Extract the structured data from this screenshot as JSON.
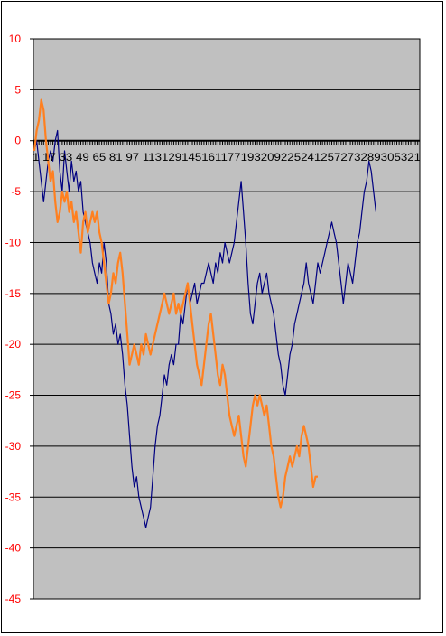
{
  "chart_data": {
    "type": "line",
    "title": "",
    "xlabel": "",
    "ylabel": "",
    "ylim": [
      -45,
      10
    ],
    "yticks": [
      10,
      5,
      0,
      -5,
      -10,
      -15,
      -20,
      -25,
      -30,
      -35,
      -40,
      -45
    ],
    "x_tick_labels": [
      "1",
      "17",
      "33",
      "49",
      "65",
      "81",
      "97",
      "113",
      "129",
      "145",
      "161",
      "177",
      "193",
      "209",
      "225",
      "241",
      "257",
      "273",
      "289",
      "305",
      "321"
    ],
    "x_tick_text": "1 17 33 49 65 81 97 113129145161177193209225241257273289305321",
    "x_count": 332,
    "grid": true,
    "legend": "none",
    "colors": {
      "plot_bg": "#c0c0c0",
      "gridline": "#000000",
      "ytick_text": "#ff0000",
      "series_blue": "#000080",
      "series_orange": "#ff8020"
    },
    "series": [
      {
        "color": "#000080",
        "points": [
          [
            1,
            -1
          ],
          [
            3,
            0
          ],
          [
            5,
            -2
          ],
          [
            7,
            -4
          ],
          [
            9,
            -6
          ],
          [
            11,
            -4
          ],
          [
            13,
            -2
          ],
          [
            15,
            -1
          ],
          [
            17,
            -2
          ],
          [
            19,
            0
          ],
          [
            21,
            1
          ],
          [
            23,
            -3
          ],
          [
            25,
            -5
          ],
          [
            27,
            -1
          ],
          [
            29,
            -3
          ],
          [
            31,
            -5
          ],
          [
            33,
            -2
          ],
          [
            35,
            -4
          ],
          [
            37,
            -3
          ],
          [
            39,
            -5
          ],
          [
            41,
            -4
          ],
          [
            43,
            -7
          ],
          [
            45,
            -8
          ],
          [
            47,
            -9
          ],
          [
            49,
            -10
          ],
          [
            51,
            -12
          ],
          [
            53,
            -13
          ],
          [
            55,
            -14
          ],
          [
            57,
            -12
          ],
          [
            59,
            -13
          ],
          [
            61,
            -10
          ],
          [
            63,
            -12
          ],
          [
            65,
            -16
          ],
          [
            67,
            -17
          ],
          [
            69,
            -19
          ],
          [
            71,
            -18
          ],
          [
            73,
            -20
          ],
          [
            75,
            -19
          ],
          [
            77,
            -21
          ],
          [
            79,
            -24
          ],
          [
            81,
            -26
          ],
          [
            83,
            -29
          ],
          [
            85,
            -32
          ],
          [
            87,
            -34
          ],
          [
            89,
            -33
          ],
          [
            91,
            -35
          ],
          [
            93,
            -36
          ],
          [
            95,
            -37
          ],
          [
            97,
            -38
          ],
          [
            99,
            -37
          ],
          [
            101,
            -36
          ],
          [
            103,
            -33
          ],
          [
            105,
            -30
          ],
          [
            107,
            -28
          ],
          [
            109,
            -27
          ],
          [
            111,
            -25
          ],
          [
            113,
            -23
          ],
          [
            115,
            -24
          ],
          [
            117,
            -22
          ],
          [
            119,
            -21
          ],
          [
            121,
            -22
          ],
          [
            123,
            -20
          ],
          [
            125,
            -20
          ],
          [
            127,
            -17
          ],
          [
            129,
            -18
          ],
          [
            131,
            -16
          ],
          [
            133,
            -14
          ],
          [
            135,
            -16
          ],
          [
            137,
            -15
          ],
          [
            139,
            -14
          ],
          [
            141,
            -16
          ],
          [
            143,
            -15
          ],
          [
            145,
            -14
          ],
          [
            147,
            -14
          ],
          [
            149,
            -13
          ],
          [
            151,
            -12
          ],
          [
            153,
            -13
          ],
          [
            155,
            -14
          ],
          [
            157,
            -12
          ],
          [
            159,
            -13
          ],
          [
            161,
            -11
          ],
          [
            163,
            -12
          ],
          [
            165,
            -10
          ],
          [
            167,
            -11
          ],
          [
            169,
            -12
          ],
          [
            171,
            -11
          ],
          [
            173,
            -10
          ],
          [
            175,
            -8
          ],
          [
            177,
            -6
          ],
          [
            179,
            -4
          ],
          [
            181,
            -7
          ],
          [
            183,
            -10
          ],
          [
            185,
            -14
          ],
          [
            187,
            -17
          ],
          [
            189,
            -18
          ],
          [
            191,
            -16
          ],
          [
            193,
            -14
          ],
          [
            195,
            -13
          ],
          [
            197,
            -15
          ],
          [
            199,
            -14
          ],
          [
            201,
            -13
          ],
          [
            203,
            -15
          ],
          [
            205,
            -16
          ],
          [
            207,
            -17
          ],
          [
            209,
            -19
          ],
          [
            211,
            -21
          ],
          [
            213,
            -22
          ],
          [
            215,
            -24
          ],
          [
            217,
            -25
          ],
          [
            219,
            -23
          ],
          [
            221,
            -21
          ],
          [
            223,
            -20
          ],
          [
            225,
            -18
          ],
          [
            227,
            -17
          ],
          [
            229,
            -16
          ],
          [
            231,
            -15
          ],
          [
            233,
            -14
          ],
          [
            235,
            -12
          ],
          [
            237,
            -14
          ],
          [
            239,
            -15
          ],
          [
            241,
            -16
          ],
          [
            243,
            -14
          ],
          [
            245,
            -12
          ],
          [
            247,
            -13
          ],
          [
            249,
            -12
          ],
          [
            251,
            -11
          ],
          [
            253,
            -10
          ],
          [
            255,
            -9
          ],
          [
            257,
            -8
          ],
          [
            259,
            -9
          ],
          [
            261,
            -10
          ],
          [
            263,
            -12
          ],
          [
            265,
            -14
          ],
          [
            267,
            -16
          ],
          [
            269,
            -14
          ],
          [
            271,
            -12
          ],
          [
            273,
            -13
          ],
          [
            275,
            -14
          ],
          [
            277,
            -12
          ],
          [
            279,
            -10
          ],
          [
            281,
            -9
          ],
          [
            283,
            -7
          ],
          [
            285,
            -5
          ],
          [
            287,
            -4
          ],
          [
            289,
            -2
          ],
          [
            291,
            -3
          ],
          [
            293,
            -5
          ],
          [
            295,
            -7
          ]
        ]
      },
      {
        "color": "#ff8020",
        "points": [
          [
            1,
            -1
          ],
          [
            3,
            1
          ],
          [
            5,
            2
          ],
          [
            7,
            4
          ],
          [
            9,
            3
          ],
          [
            11,
            0
          ],
          [
            13,
            -2
          ],
          [
            15,
            -4
          ],
          [
            17,
            -3
          ],
          [
            19,
            -6
          ],
          [
            21,
            -8
          ],
          [
            23,
            -7
          ],
          [
            25,
            -5
          ],
          [
            27,
            -6
          ],
          [
            29,
            -5
          ],
          [
            31,
            -7
          ],
          [
            33,
            -6
          ],
          [
            35,
            -8
          ],
          [
            37,
            -7
          ],
          [
            39,
            -9
          ],
          [
            41,
            -11
          ],
          [
            43,
            -8
          ],
          [
            45,
            -7
          ],
          [
            47,
            -9
          ],
          [
            49,
            -8
          ],
          [
            51,
            -7
          ],
          [
            53,
            -8
          ],
          [
            55,
            -7
          ],
          [
            57,
            -9
          ],
          [
            59,
            -10
          ],
          [
            61,
            -12
          ],
          [
            63,
            -14
          ],
          [
            65,
            -16
          ],
          [
            67,
            -15
          ],
          [
            69,
            -13
          ],
          [
            71,
            -14
          ],
          [
            73,
            -12
          ],
          [
            75,
            -11
          ],
          [
            77,
            -13
          ],
          [
            79,
            -16
          ],
          [
            81,
            -19
          ],
          [
            83,
            -22
          ],
          [
            85,
            -21
          ],
          [
            87,
            -20
          ],
          [
            89,
            -21
          ],
          [
            91,
            -22
          ],
          [
            93,
            -20
          ],
          [
            95,
            -21
          ],
          [
            97,
            -19
          ],
          [
            99,
            -20
          ],
          [
            101,
            -21
          ],
          [
            103,
            -20
          ],
          [
            105,
            -19
          ],
          [
            107,
            -18
          ],
          [
            109,
            -17
          ],
          [
            111,
            -16
          ],
          [
            113,
            -15
          ],
          [
            115,
            -16
          ],
          [
            117,
            -17
          ],
          [
            119,
            -16
          ],
          [
            121,
            -15
          ],
          [
            123,
            -17
          ],
          [
            125,
            -16
          ],
          [
            127,
            -17
          ],
          [
            129,
            -16
          ],
          [
            131,
            -15
          ],
          [
            133,
            -14
          ],
          [
            135,
            -16
          ],
          [
            137,
            -18
          ],
          [
            139,
            -20
          ],
          [
            141,
            -22
          ],
          [
            143,
            -23
          ],
          [
            145,
            -24
          ],
          [
            147,
            -22
          ],
          [
            149,
            -20
          ],
          [
            151,
            -18
          ],
          [
            153,
            -17
          ],
          [
            155,
            -19
          ],
          [
            157,
            -21
          ],
          [
            159,
            -23
          ],
          [
            161,
            -24
          ],
          [
            163,
            -22
          ],
          [
            165,
            -23
          ],
          [
            167,
            -25
          ],
          [
            169,
            -27
          ],
          [
            171,
            -28
          ],
          [
            173,
            -29
          ],
          [
            175,
            -28
          ],
          [
            177,
            -27
          ],
          [
            179,
            -29
          ],
          [
            181,
            -31
          ],
          [
            183,
            -32
          ],
          [
            185,
            -30
          ],
          [
            187,
            -28
          ],
          [
            189,
            -26
          ],
          [
            191,
            -25
          ],
          [
            193,
            -26
          ],
          [
            195,
            -25
          ],
          [
            197,
            -26
          ],
          [
            199,
            -27
          ],
          [
            201,
            -26
          ],
          [
            203,
            -28
          ],
          [
            205,
            -30
          ],
          [
            207,
            -31
          ],
          [
            209,
            -33
          ],
          [
            211,
            -35
          ],
          [
            213,
            -36
          ],
          [
            215,
            -35
          ],
          [
            217,
            -33
          ],
          [
            219,
            -32
          ],
          [
            221,
            -31
          ],
          [
            223,
            -32
          ],
          [
            225,
            -31
          ],
          [
            227,
            -30
          ],
          [
            229,
            -31
          ],
          [
            231,
            -29
          ],
          [
            233,
            -28
          ],
          [
            235,
            -29
          ],
          [
            237,
            -30
          ],
          [
            239,
            -32
          ],
          [
            241,
            -34
          ],
          [
            243,
            -33
          ],
          [
            245,
            -33
          ]
        ]
      }
    ]
  }
}
